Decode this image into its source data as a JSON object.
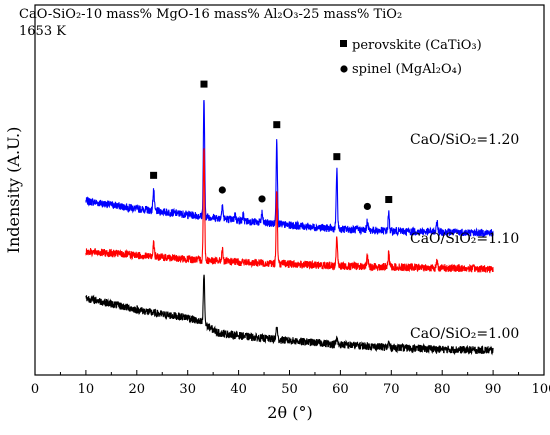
{
  "chart_data": {
    "type": "line",
    "title_line1": "CaO-SiO₂-10 mass% MgO-16 mass% Al₂O₃-25 mass% TiO₂",
    "title_line2": "1653 K",
    "xlabel": "2θ (°)",
    "ylabel": "Indensity (A.U.)",
    "xlim": [
      0,
      100
    ],
    "xticks": [
      0,
      10,
      20,
      30,
      40,
      50,
      60,
      70,
      80,
      90,
      100
    ],
    "grid": false,
    "legend": {
      "placement": "top-right",
      "entries": [
        {
          "marker": "square",
          "label": "perovskite (CaTiO₃)"
        },
        {
          "marker": "circle",
          "label": "spinel (MgAl₂O₄)"
        }
      ]
    },
    "series": [
      {
        "label": "CaO/SiO₂=1.20",
        "color": "#0000ff",
        "baseline": [
          [
            10,
            1.0
          ],
          [
            20,
            0.92
          ],
          [
            30,
            0.86
          ],
          [
            40,
            0.8
          ],
          [
            50,
            0.75
          ],
          [
            60,
            0.71
          ],
          [
            70,
            0.69
          ],
          [
            80,
            0.68
          ],
          [
            90,
            0.67
          ]
        ],
        "peaks": [
          [
            23.3,
            0.22
          ],
          [
            33.2,
            1.22
          ],
          [
            36.8,
            0.15
          ],
          [
            39.3,
            0.06
          ],
          [
            40.9,
            0.06
          ],
          [
            44.6,
            0.1
          ],
          [
            47.5,
            0.88
          ],
          [
            59.3,
            0.6
          ],
          [
            65.3,
            0.1
          ],
          [
            69.5,
            0.18
          ],
          [
            79.0,
            0.1
          ]
        ],
        "noise": 0.04
      },
      {
        "label": "CaO/SiO₂=1.10",
        "color": "#ff0000",
        "baseline": [
          [
            10,
            0.48
          ],
          [
            20,
            0.44
          ],
          [
            30,
            0.4
          ],
          [
            40,
            0.37
          ],
          [
            50,
            0.35
          ],
          [
            60,
            0.33
          ],
          [
            70,
            0.32
          ],
          [
            80,
            0.31
          ],
          [
            90,
            0.3
          ]
        ],
        "peaks": [
          [
            23.3,
            0.16
          ],
          [
            33.2,
            1.18
          ],
          [
            36.8,
            0.12
          ],
          [
            47.5,
            0.76
          ],
          [
            59.3,
            0.3
          ],
          [
            65.3,
            0.11
          ],
          [
            69.5,
            0.14
          ],
          [
            79.0,
            0.07
          ]
        ],
        "noise": 0.04
      },
      {
        "label": "CaO/SiO₂=1.00",
        "color": "#000000",
        "baseline": [
          [
            10,
            0.0
          ],
          [
            15,
            -0.06
          ],
          [
            20,
            -0.12
          ],
          [
            25,
            -0.17
          ],
          [
            30,
            -0.2
          ],
          [
            33,
            -0.26
          ],
          [
            36,
            -0.36
          ],
          [
            42,
            -0.4
          ],
          [
            50,
            -0.44
          ],
          [
            60,
            -0.48
          ],
          [
            70,
            -0.51
          ],
          [
            80,
            -0.53
          ],
          [
            90,
            -0.54
          ]
        ],
        "peaks": [
          [
            33.2,
            0.52
          ],
          [
            47.5,
            0.14
          ],
          [
            59.3,
            0.06
          ],
          [
            69.5,
            0.05
          ]
        ],
        "noise": 0.04
      }
    ],
    "markers": [
      {
        "type": "square",
        "x": 23.3,
        "series": 0
      },
      {
        "type": "square",
        "x": 33.2,
        "series": 0
      },
      {
        "type": "circle",
        "x": 36.8,
        "series": 0
      },
      {
        "type": "circle",
        "x": 44.6,
        "series": 0
      },
      {
        "type": "square",
        "x": 47.5,
        "series": 0
      },
      {
        "type": "square",
        "x": 59.3,
        "series": 0
      },
      {
        "type": "circle",
        "x": 65.3,
        "series": 0
      },
      {
        "type": "square",
        "x": 69.5,
        "series": 0
      }
    ]
  }
}
